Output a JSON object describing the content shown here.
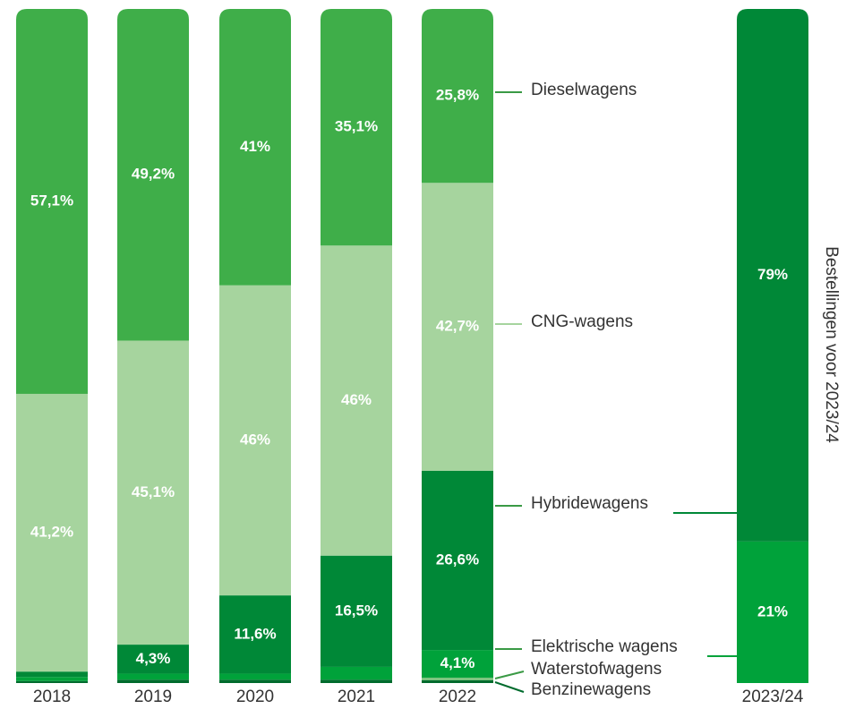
{
  "chart_data": {
    "type": "stacked-bar",
    "categories": [
      "2018",
      "2019",
      "2020",
      "2021",
      "2022",
      "2023/24"
    ],
    "side_label": "Bestellingen voor 2023/24",
    "ylim": [
      0,
      100
    ],
    "series": [
      {
        "name": "Benzinewagens",
        "color": "#006b2d",
        "values": [
          0.3,
          0.5,
          0.5,
          0.5,
          0.4,
          null
        ],
        "value_labels": [
          null,
          null,
          null,
          null,
          null,
          null
        ]
      },
      {
        "name": "Waterstofwagens",
        "color": "#7cc47f",
        "values": [
          null,
          null,
          null,
          null,
          0.4,
          null
        ],
        "value_labels": [
          null,
          null,
          null,
          null,
          null,
          null
        ]
      },
      {
        "name": "Elektrische wagens",
        "color": "#00a23a",
        "values": [
          0.6,
          0.9,
          0.9,
          1.9,
          4.1,
          21
        ],
        "value_labels": [
          null,
          null,
          null,
          null,
          "4,1%",
          "21%"
        ]
      },
      {
        "name": "Hybridewagens",
        "color": "#008837",
        "values": [
          0.8,
          4.3,
          11.6,
          16.5,
          26.6,
          79
        ],
        "value_labels": [
          null,
          "4,3%",
          "11,6%",
          "16,5%",
          "26,6%",
          "79%"
        ]
      },
      {
        "name": "CNG-wagens",
        "color": "#a6d49e",
        "values": [
          41.2,
          45.1,
          46,
          46,
          42.7,
          null
        ],
        "value_labels": [
          "41,2%",
          "45,1%",
          "46%",
          "46%",
          "42,7%",
          null
        ]
      },
      {
        "name": "Dieselwagens",
        "color": "#3fae49",
        "values": [
          57.1,
          49.2,
          41,
          35.1,
          25.8,
          null
        ],
        "value_labels": [
          "57,1%",
          "49,2%",
          "41%",
          "35,1%",
          "25,8%",
          null
        ]
      }
    ]
  }
}
